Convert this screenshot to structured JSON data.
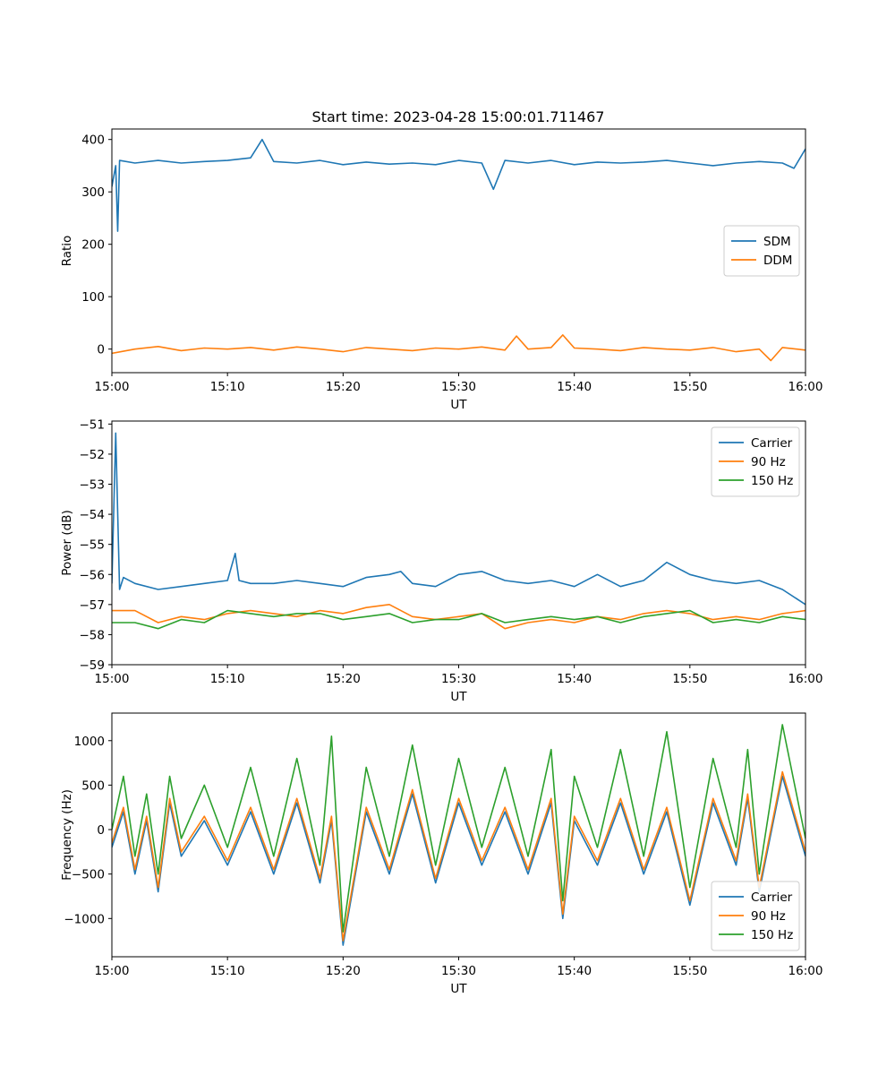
{
  "figure_title": "Start time: 2023-04-28 15:00:01.711467",
  "chart_data": [
    {
      "type": "line",
      "title": "Start time: 2023-04-28 15:00:01.711467",
      "xlabel": "UT",
      "ylabel": "Ratio",
      "xlim": [
        "15:00",
        "16:00"
      ],
      "ylim": [
        -45,
        420
      ],
      "xticks": [
        "15:00",
        "15:10",
        "15:20",
        "15:30",
        "15:40",
        "15:50",
        "16:00"
      ],
      "yticks": [
        0,
        100,
        200,
        300,
        400
      ],
      "ytick_labels": [
        "0",
        "100",
        "200",
        "300",
        "400"
      ],
      "legend_location": "center-right",
      "grid": false,
      "series": [
        {
          "name": "SDM",
          "color": "#1f77b4",
          "x": [
            "15:00",
            "15:00:20",
            "15:00:30",
            "15:00:40",
            "15:02",
            "15:04",
            "15:06",
            "15:08",
            "15:10",
            "15:12",
            "15:13",
            "15:14",
            "15:16",
            "15:18",
            "15:20",
            "15:22",
            "15:24",
            "15:26",
            "15:28",
            "15:30",
            "15:32",
            "15:33",
            "15:34",
            "15:36",
            "15:38",
            "15:40",
            "15:42",
            "15:44",
            "15:46",
            "15:48",
            "15:50",
            "15:52",
            "15:54",
            "15:56",
            "15:58",
            "15:59",
            "16:00"
          ],
          "values": [
            310,
            350,
            225,
            360,
            355,
            360,
            355,
            358,
            360,
            365,
            400,
            358,
            355,
            360,
            352,
            357,
            353,
            355,
            352,
            360,
            355,
            305,
            360,
            355,
            360,
            352,
            357,
            355,
            357,
            360,
            355,
            350,
            355,
            358,
            355,
            345,
            382
          ]
        },
        {
          "name": "DDM",
          "color": "#ff7f0e",
          "x": [
            "15:00",
            "15:02",
            "15:04",
            "15:06",
            "15:08",
            "15:10",
            "15:12",
            "15:14",
            "15:16",
            "15:18",
            "15:20",
            "15:22",
            "15:24",
            "15:26",
            "15:28",
            "15:30",
            "15:32",
            "15:34",
            "15:35",
            "15:36",
            "15:38",
            "15:39",
            "15:40",
            "15:42",
            "15:44",
            "15:46",
            "15:48",
            "15:50",
            "15:52",
            "15:54",
            "15:56",
            "15:57",
            "15:58",
            "16:00"
          ],
          "values": [
            -8,
            0,
            5,
            -3,
            2,
            0,
            3,
            -2,
            4,
            0,
            -5,
            3,
            0,
            -3,
            2,
            0,
            4,
            -2,
            25,
            0,
            3,
            27,
            2,
            0,
            -3,
            3,
            0,
            -2,
            3,
            -5,
            0,
            -22,
            3,
            -2
          ]
        }
      ]
    },
    {
      "type": "line",
      "title": "",
      "xlabel": "UT",
      "ylabel": "Power (dB)",
      "xlim": [
        "15:00",
        "16:00"
      ],
      "ylim": [
        -59,
        -50.9
      ],
      "xticks": [
        "15:00",
        "15:10",
        "15:20",
        "15:30",
        "15:40",
        "15:50",
        "16:00"
      ],
      "yticks": [
        -59,
        -58,
        -57,
        -56,
        -55,
        -54,
        -53,
        -52,
        -51
      ],
      "ytick_labels": [
        "−59",
        "−58",
        "−57",
        "−56",
        "−55",
        "−54",
        "−53",
        "−52",
        "−51"
      ],
      "legend_location": "top-right",
      "grid": false,
      "series": [
        {
          "name": "Carrier",
          "color": "#1f77b4",
          "x": [
            "15:00",
            "15:00:20",
            "15:00:40",
            "15:01",
            "15:02",
            "15:04",
            "15:06",
            "15:08",
            "15:10",
            "15:10:40",
            "15:11",
            "15:12",
            "15:14",
            "15:16",
            "15:18",
            "15:20",
            "15:22",
            "15:24",
            "15:25",
            "15:26",
            "15:28",
            "15:30",
            "15:32",
            "15:34",
            "15:36",
            "15:38",
            "15:40",
            "15:42",
            "15:44",
            "15:46",
            "15:48",
            "15:50",
            "15:52",
            "15:54",
            "15:56",
            "15:58",
            "16:00"
          ],
          "values": [
            -56.3,
            -51.3,
            -56.5,
            -56.1,
            -56.3,
            -56.5,
            -56.4,
            -56.3,
            -56.2,
            -55.3,
            -56.2,
            -56.3,
            -56.3,
            -56.2,
            -56.3,
            -56.4,
            -56.1,
            -56.0,
            -55.9,
            -56.3,
            -56.4,
            -56.0,
            -55.9,
            -56.2,
            -56.3,
            -56.2,
            -56.4,
            -56.0,
            -56.4,
            -56.2,
            -55.6,
            -56.0,
            -56.2,
            -56.3,
            -56.2,
            -56.5,
            -57.0
          ]
        },
        {
          "name": "90 Hz",
          "color": "#ff7f0e",
          "x": [
            "15:00",
            "15:02",
            "15:04",
            "15:06",
            "15:08",
            "15:10",
            "15:12",
            "15:14",
            "15:16",
            "15:18",
            "15:20",
            "15:22",
            "15:24",
            "15:26",
            "15:28",
            "15:30",
            "15:32",
            "15:34",
            "15:36",
            "15:38",
            "15:40",
            "15:42",
            "15:44",
            "15:46",
            "15:48",
            "15:50",
            "15:52",
            "15:54",
            "15:56",
            "15:58",
            "16:00"
          ],
          "values": [
            -57.2,
            -57.2,
            -57.6,
            -57.4,
            -57.5,
            -57.3,
            -57.2,
            -57.3,
            -57.4,
            -57.2,
            -57.3,
            -57.1,
            -57.0,
            -57.4,
            -57.5,
            -57.4,
            -57.3,
            -57.8,
            -57.6,
            -57.5,
            -57.6,
            -57.4,
            -57.5,
            -57.3,
            -57.2,
            -57.3,
            -57.5,
            -57.4,
            -57.5,
            -57.3,
            -57.2
          ]
        },
        {
          "name": "150 Hz",
          "color": "#2ca02c",
          "x": [
            "15:00",
            "15:02",
            "15:04",
            "15:06",
            "15:08",
            "15:10",
            "15:12",
            "15:14",
            "15:16",
            "15:18",
            "15:20",
            "15:22",
            "15:24",
            "15:26",
            "15:28",
            "15:30",
            "15:32",
            "15:34",
            "15:36",
            "15:38",
            "15:40",
            "15:42",
            "15:44",
            "15:46",
            "15:48",
            "15:50",
            "15:52",
            "15:54",
            "15:56",
            "15:58",
            "16:00"
          ],
          "values": [
            -57.6,
            -57.6,
            -57.8,
            -57.5,
            -57.6,
            -57.2,
            -57.3,
            -57.4,
            -57.3,
            -57.3,
            -57.5,
            -57.4,
            -57.3,
            -57.6,
            -57.5,
            -57.5,
            -57.3,
            -57.6,
            -57.5,
            -57.4,
            -57.5,
            -57.4,
            -57.6,
            -57.4,
            -57.3,
            -57.2,
            -57.6,
            -57.5,
            -57.6,
            -57.4,
            -57.5
          ]
        }
      ]
    },
    {
      "type": "line",
      "title": "",
      "xlabel": "UT",
      "ylabel": "Frequency (Hz)",
      "xlim": [
        "15:00",
        "16:00"
      ],
      "ylim": [
        -1430,
        1310
      ],
      "xticks": [
        "15:00",
        "15:10",
        "15:20",
        "15:30",
        "15:40",
        "15:50",
        "16:00"
      ],
      "yticks": [
        -1000,
        -500,
        0,
        500,
        1000
      ],
      "ytick_labels": [
        "−1000",
        "−500",
        "0",
        "500",
        "1000"
      ],
      "legend_location": "bottom-right",
      "grid": false,
      "series": [
        {
          "name": "Carrier",
          "color": "#1f77b4",
          "x": [
            "15:00",
            "15:01",
            "15:02",
            "15:03",
            "15:04",
            "15:05",
            "15:06",
            "15:08",
            "15:10",
            "15:12",
            "15:14",
            "15:16",
            "15:18",
            "15:19",
            "15:20",
            "15:22",
            "15:24",
            "15:26",
            "15:28",
            "15:30",
            "15:32",
            "15:34",
            "15:36",
            "15:38",
            "15:39",
            "15:40",
            "15:42",
            "15:44",
            "15:46",
            "15:48",
            "15:50",
            "15:52",
            "15:54",
            "15:55",
            "15:56",
            "15:58",
            "16:00"
          ],
          "values": [
            -200,
            200,
            -500,
            100,
            -700,
            300,
            -300,
            100,
            -400,
            200,
            -500,
            300,
            -600,
            100,
            -1300,
            200,
            -500,
            400,
            -600,
            300,
            -400,
            200,
            -500,
            300,
            -1000,
            100,
            -400,
            300,
            -500,
            200,
            -850,
            300,
            -400,
            350,
            -700,
            600,
            -300
          ]
        },
        {
          "name": "90 Hz",
          "color": "#ff7f0e",
          "x": [
            "15:00",
            "15:01",
            "15:02",
            "15:03",
            "15:04",
            "15:05",
            "15:06",
            "15:08",
            "15:10",
            "15:12",
            "15:14",
            "15:16",
            "15:18",
            "15:19",
            "15:20",
            "15:22",
            "15:24",
            "15:26",
            "15:28",
            "15:30",
            "15:32",
            "15:34",
            "15:36",
            "15:38",
            "15:39",
            "15:40",
            "15:42",
            "15:44",
            "15:46",
            "15:48",
            "15:50",
            "15:52",
            "15:54",
            "15:55",
            "15:56",
            "15:58",
            "16:00"
          ],
          "values": [
            -150,
            250,
            -450,
            150,
            -650,
            350,
            -250,
            150,
            -350,
            250,
            -450,
            350,
            -550,
            150,
            -1250,
            250,
            -450,
            450,
            -550,
            350,
            -350,
            250,
            -450,
            350,
            -950,
            150,
            -350,
            350,
            -450,
            250,
            -800,
            350,
            -350,
            400,
            -650,
            650,
            -250
          ]
        },
        {
          "name": "150 Hz",
          "color": "#2ca02c",
          "x": [
            "15:00",
            "15:01",
            "15:02",
            "15:03",
            "15:04",
            "15:05",
            "15:06",
            "15:08",
            "15:10",
            "15:12",
            "15:14",
            "15:16",
            "15:18",
            "15:19",
            "15:20",
            "15:22",
            "15:24",
            "15:26",
            "15:28",
            "15:30",
            "15:32",
            "15:34",
            "15:36",
            "15:38",
            "15:39",
            "15:40",
            "15:42",
            "15:44",
            "15:46",
            "15:48",
            "15:50",
            "15:52",
            "15:54",
            "15:55",
            "15:56",
            "15:58",
            "16:00"
          ],
          "values": [
            0,
            600,
            -300,
            400,
            -500,
            600,
            -100,
            500,
            -200,
            700,
            -300,
            800,
            -400,
            1050,
            -1150,
            700,
            -300,
            950,
            -400,
            800,
            -200,
            700,
            -300,
            900,
            -800,
            600,
            -200,
            900,
            -300,
            1100,
            -650,
            800,
            -200,
            900,
            -500,
            1180,
            -100
          ]
        }
      ]
    }
  ]
}
